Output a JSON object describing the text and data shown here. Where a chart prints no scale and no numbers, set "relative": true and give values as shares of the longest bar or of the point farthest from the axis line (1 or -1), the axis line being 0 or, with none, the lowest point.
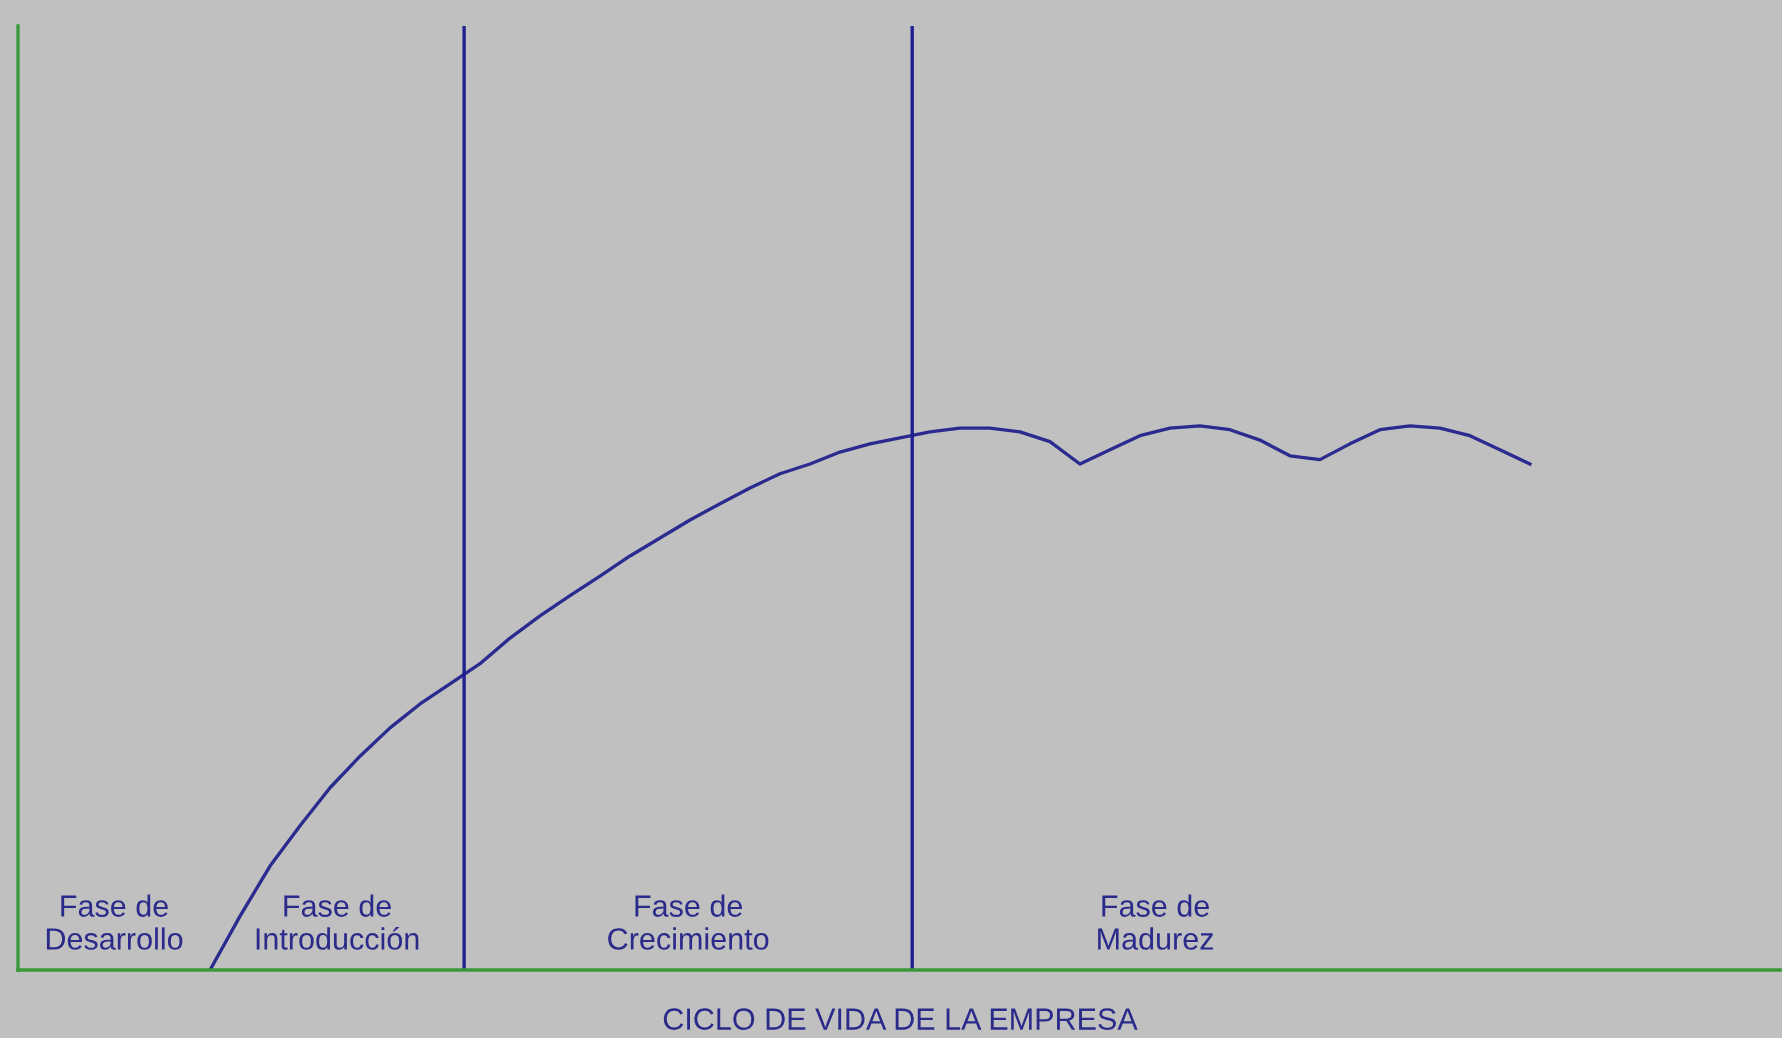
{
  "chart_data": {
    "type": "line",
    "relative": true,
    "xlabel": "CICLO DE VIDA DE LA EMPRESA",
    "categories": [
      null,
      null,
      null,
      null,
      null,
      null,
      null,
      null,
      null,
      null,
      null,
      null,
      null,
      null,
      null,
      null,
      null,
      null,
      null,
      null,
      null,
      null,
      null,
      null,
      null,
      null,
      null,
      null,
      null,
      null,
      null,
      null,
      null,
      null,
      null,
      null,
      null,
      null,
      null,
      null,
      null,
      null,
      null,
      null,
      null
    ],
    "series": [
      {
        "color": "#2b2b8f",
        "values": [
          0,
          0.099,
          0.191,
          0.265,
          0.335,
          0.393,
          0.445,
          0.489,
          0.526,
          0.563,
          0.61,
          0.651,
          0.688,
          0.724,
          0.761,
          0.794,
          0.827,
          0.857,
          0.886,
          0.912,
          0.93,
          0.952,
          0.967,
          0.978,
          0.989,
          0.996,
          0.996,
          0.989,
          0.971,
          0.93,
          0.956,
          0.982,
          0.996,
          1,
          0.993,
          0.974,
          0.945,
          0.938,
          0.967,
          0.993,
          1,
          0.996,
          0.982,
          0.956,
          0.93
        ]
      }
    ],
    "annotations": [
      "Fase de\nDesarrollo",
      "Fase de\nIntroducción",
      "Fase de\nCrecimiento",
      "Fase de\nMadurez"
    ]
  }
}
